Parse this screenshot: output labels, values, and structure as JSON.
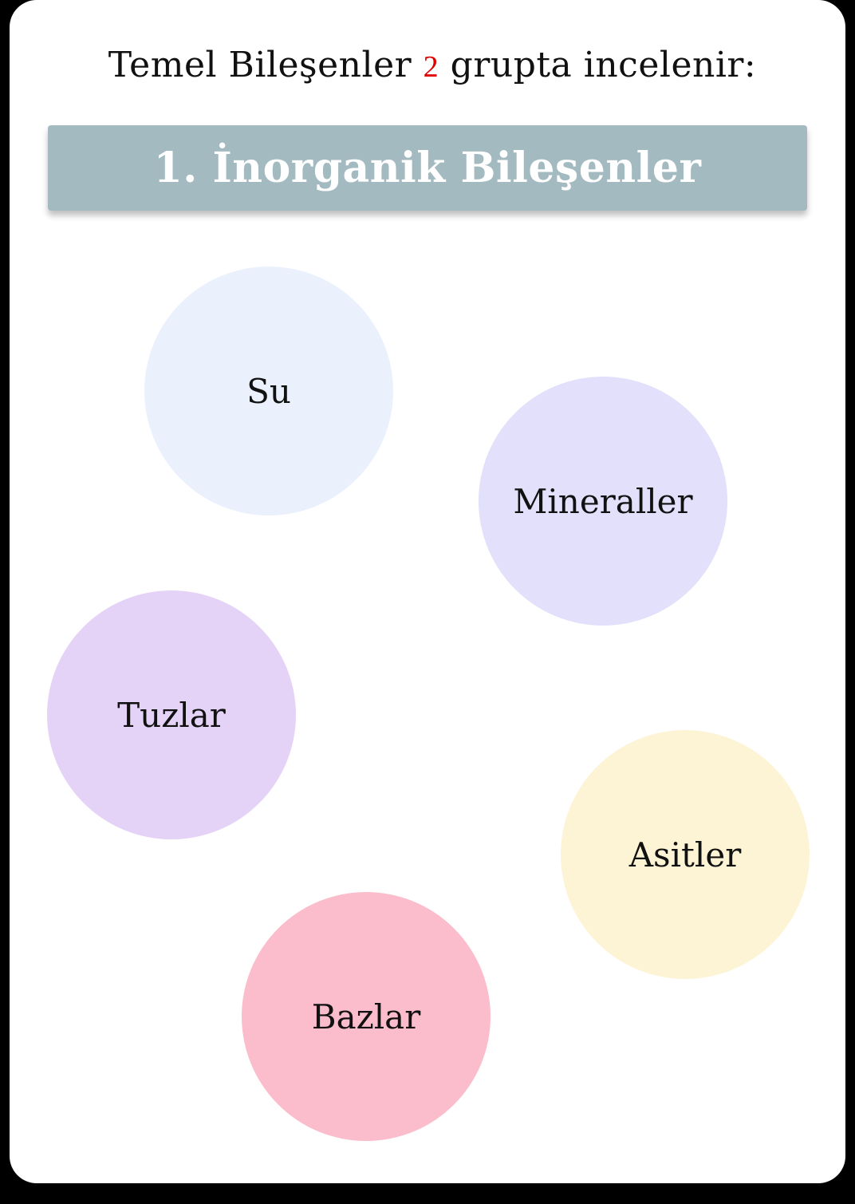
{
  "header": {
    "prefix": "Temel Bileşenler",
    "count": "2",
    "suffix": "grupta incelenir:"
  },
  "banner": {
    "title": "1. İnorganik Bileşenler",
    "color": "#a3bac1"
  },
  "bubbles": [
    {
      "label": "Su",
      "color": "#eaf1fd"
    },
    {
      "label": "Mineraller",
      "color": "#e2e0fa"
    },
    {
      "label": "Tuzlar",
      "color": "#e4d3f7"
    },
    {
      "label": "Asitler",
      "color": "#fdf3d5"
    },
    {
      "label": "Bazlar",
      "color": "#fbbccb"
    }
  ]
}
